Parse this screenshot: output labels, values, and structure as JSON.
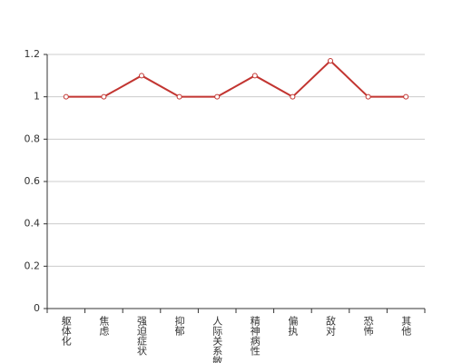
{
  "chart_data": {
    "type": "line",
    "categories": [
      "躯体化",
      "焦虑",
      "强迫症状",
      "抑郁",
      "人际关系敏感",
      "精神病性",
      "偏执",
      "敌对",
      "恐怖",
      "其他"
    ],
    "values": [
      1,
      1,
      1.1,
      1,
      1,
      1.1,
      1,
      1.17,
      1,
      1
    ],
    "color": "#c23531",
    "ylim": [
      0,
      1.2
    ],
    "yticks": [
      0,
      0.2,
      0.4,
      0.6,
      0.8,
      1,
      1.2
    ],
    "grid": true
  }
}
